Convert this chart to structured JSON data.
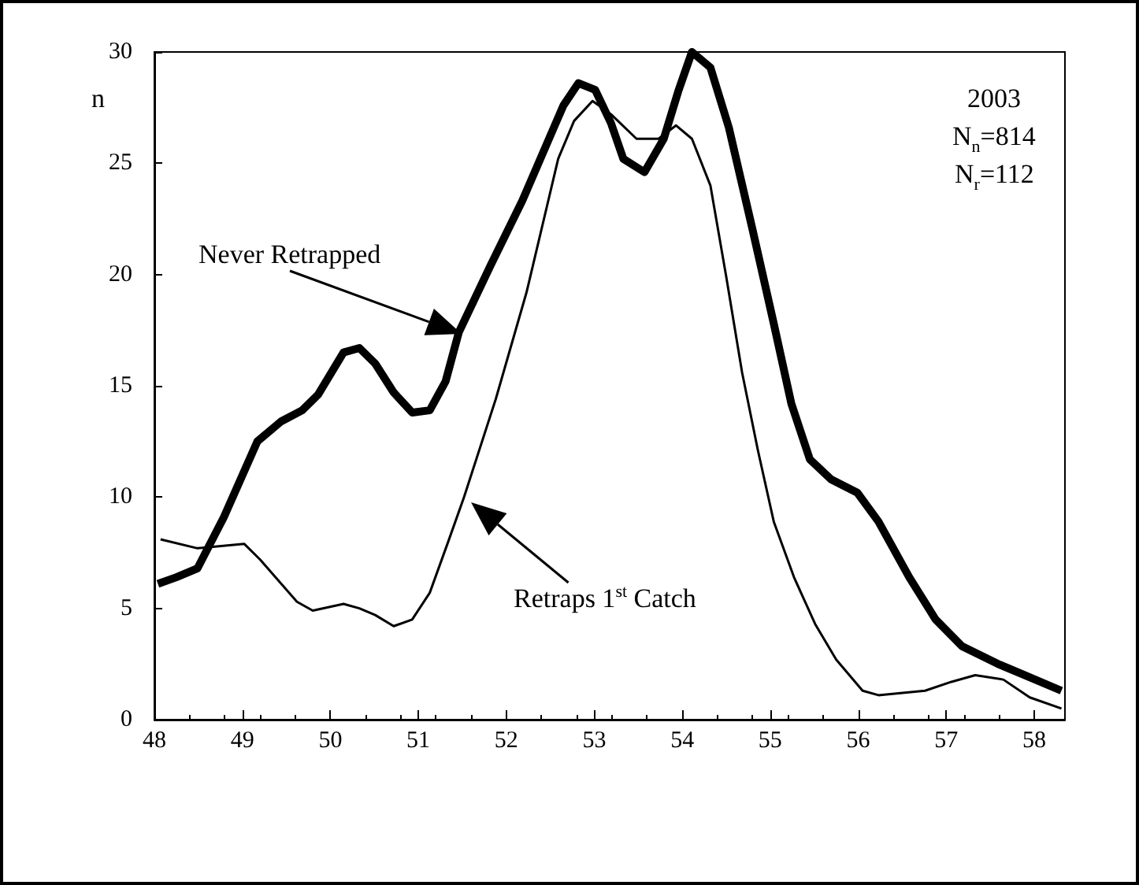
{
  "chart_data": {
    "type": "line",
    "ylabel": "n",
    "xlim": [
      48,
      58.35
    ],
    "xticks": [
      48,
      49,
      50,
      51,
      52,
      53,
      54,
      55,
      56,
      57,
      58
    ],
    "ylim": [
      0,
      30
    ],
    "yticks": [
      0,
      5,
      10,
      15,
      20,
      25,
      30
    ],
    "grid": false,
    "marker": "none",
    "series": [
      {
        "color": "#000000",
        "x": [
          48.04,
          48.25,
          48.49,
          48.79,
          49.17,
          49.44,
          49.68,
          49.86,
          50.15,
          50.33,
          50.51,
          50.72,
          50.93,
          51.13,
          51.31,
          51.46,
          51.82,
          52.18,
          52.54,
          52.65,
          52.82,
          53.01,
          53.19,
          53.33,
          53.57,
          53.79,
          53.96,
          54.11,
          54.32,
          54.53,
          54.8,
          55.04,
          55.24,
          55.45,
          55.69,
          55.99,
          56.23,
          56.58,
          56.88,
          57.18,
          57.59,
          57.89,
          58.31
        ],
        "values": [
          6.1,
          6.4,
          6.8,
          9.1,
          12.5,
          13.4,
          13.9,
          14.6,
          16.5,
          16.7,
          16.0,
          14.7,
          13.8,
          13.9,
          15.2,
          17.4,
          20.4,
          23.3,
          26.6,
          27.6,
          28.6,
          28.3,
          26.8,
          25.2,
          24.6,
          26.1,
          28.3,
          30.0,
          29.3,
          26.6,
          22.0,
          17.8,
          14.2,
          11.7,
          10.8,
          10.2,
          8.9,
          6.4,
          4.5,
          3.3,
          2.5,
          2.0,
          1.3
        ]
      },
      {
        "color": "#000000",
        "x": [
          48.07,
          48.49,
          49.02,
          49.2,
          49.62,
          49.8,
          50.15,
          50.33,
          50.51,
          50.72,
          50.93,
          51.13,
          51.34,
          51.52,
          51.88,
          52.23,
          52.59,
          52.77,
          52.98,
          53.19,
          53.48,
          53.73,
          53.93,
          54.11,
          54.32,
          54.5,
          54.68,
          54.86,
          55.04,
          55.27,
          55.51,
          55.75,
          56.05,
          56.23,
          56.76,
          57.06,
          57.33,
          57.65,
          57.95,
          58.31
        ],
        "values": [
          8.1,
          7.7,
          7.9,
          7.2,
          5.3,
          4.9,
          5.2,
          5.0,
          4.7,
          4.2,
          4.5,
          5.7,
          8.0,
          10.0,
          14.4,
          19.2,
          25.2,
          26.9,
          27.8,
          27.2,
          26.1,
          26.1,
          26.7,
          26.1,
          24.0,
          19.9,
          15.6,
          12.1,
          8.9,
          6.4,
          4.3,
          2.7,
          1.3,
          1.1,
          1.3,
          1.7,
          2.0,
          1.8,
          1.0,
          0.5
        ]
      }
    ],
    "annotations": [
      "Never Retrapped",
      "Retraps 1$^{st}$ Catch",
      "2003",
      "N$_{n}$=814",
      "N$_{r}$=112"
    ]
  }
}
